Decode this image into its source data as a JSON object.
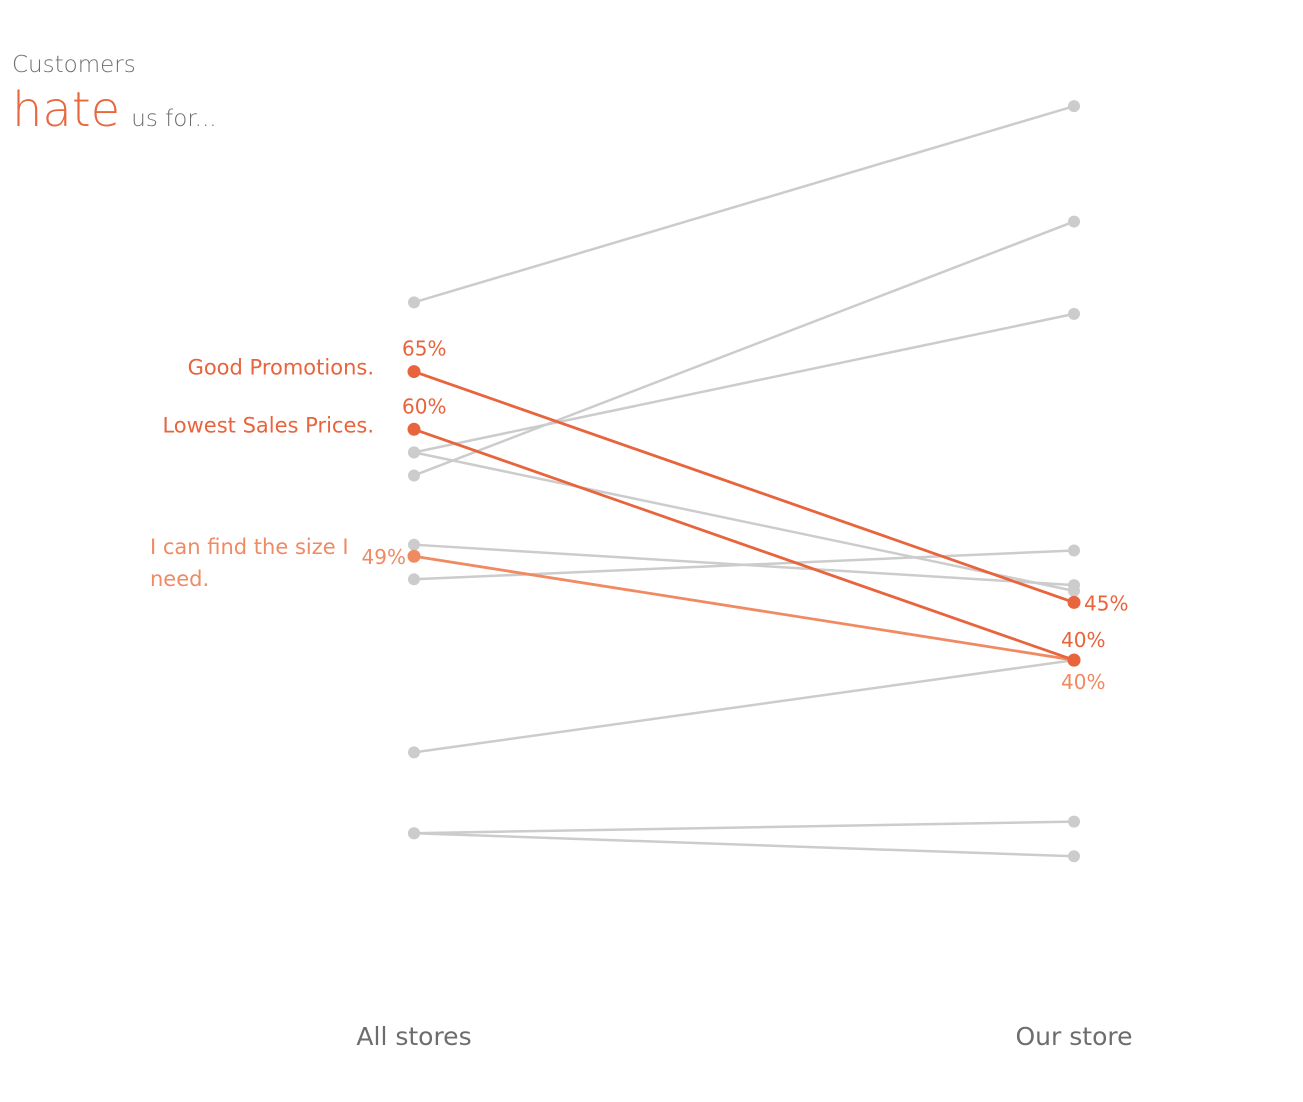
{
  "header": {
    "subtitle": "Customers",
    "title_em": "hate",
    "title_rest": "us for..."
  },
  "colors": {
    "highlight": "#e8643c",
    "highlight_light": "#f08a63",
    "context": "#cccccc",
    "axis_text": "#6d6d6d"
  },
  "chart_data": {
    "type": "slope",
    "categories": [
      "All stores",
      "Our store"
    ],
    "ylim": [
      5,
      92
    ],
    "series": [
      {
        "name": "",
        "values": [
          71,
          88
        ],
        "highlight": null
      },
      {
        "name": "",
        "values": [
          56,
          78
        ],
        "highlight": null
      },
      {
        "name": "",
        "values": [
          58,
          70
        ],
        "highlight": null
      },
      {
        "name": "",
        "values": [
          58,
          46
        ],
        "highlight": null
      },
      {
        "name": "",
        "values": [
          50,
          46.5
        ],
        "highlight": null
      },
      {
        "name": "",
        "values": [
          47,
          49.5
        ],
        "highlight": null
      },
      {
        "name": "",
        "values": [
          32,
          40
        ],
        "highlight": null
      },
      {
        "name": "",
        "values": [
          25,
          26
        ],
        "highlight": null
      },
      {
        "name": "",
        "values": [
          25,
          23
        ],
        "highlight": null
      },
      {
        "name": "Good Promotions.",
        "values": [
          65,
          45
        ],
        "highlight": "strong",
        "value_labels": [
          "65%",
          "45%"
        ]
      },
      {
        "name": "Lowest Sales Prices.",
        "values": [
          60,
          40
        ],
        "highlight": "strong",
        "value_labels": [
          "60%",
          "40%"
        ]
      },
      {
        "name": "I can find the size I need.",
        "values": [
          49,
          40
        ],
        "highlight": "light",
        "value_labels": [
          "49%",
          "40%"
        ]
      }
    ]
  }
}
